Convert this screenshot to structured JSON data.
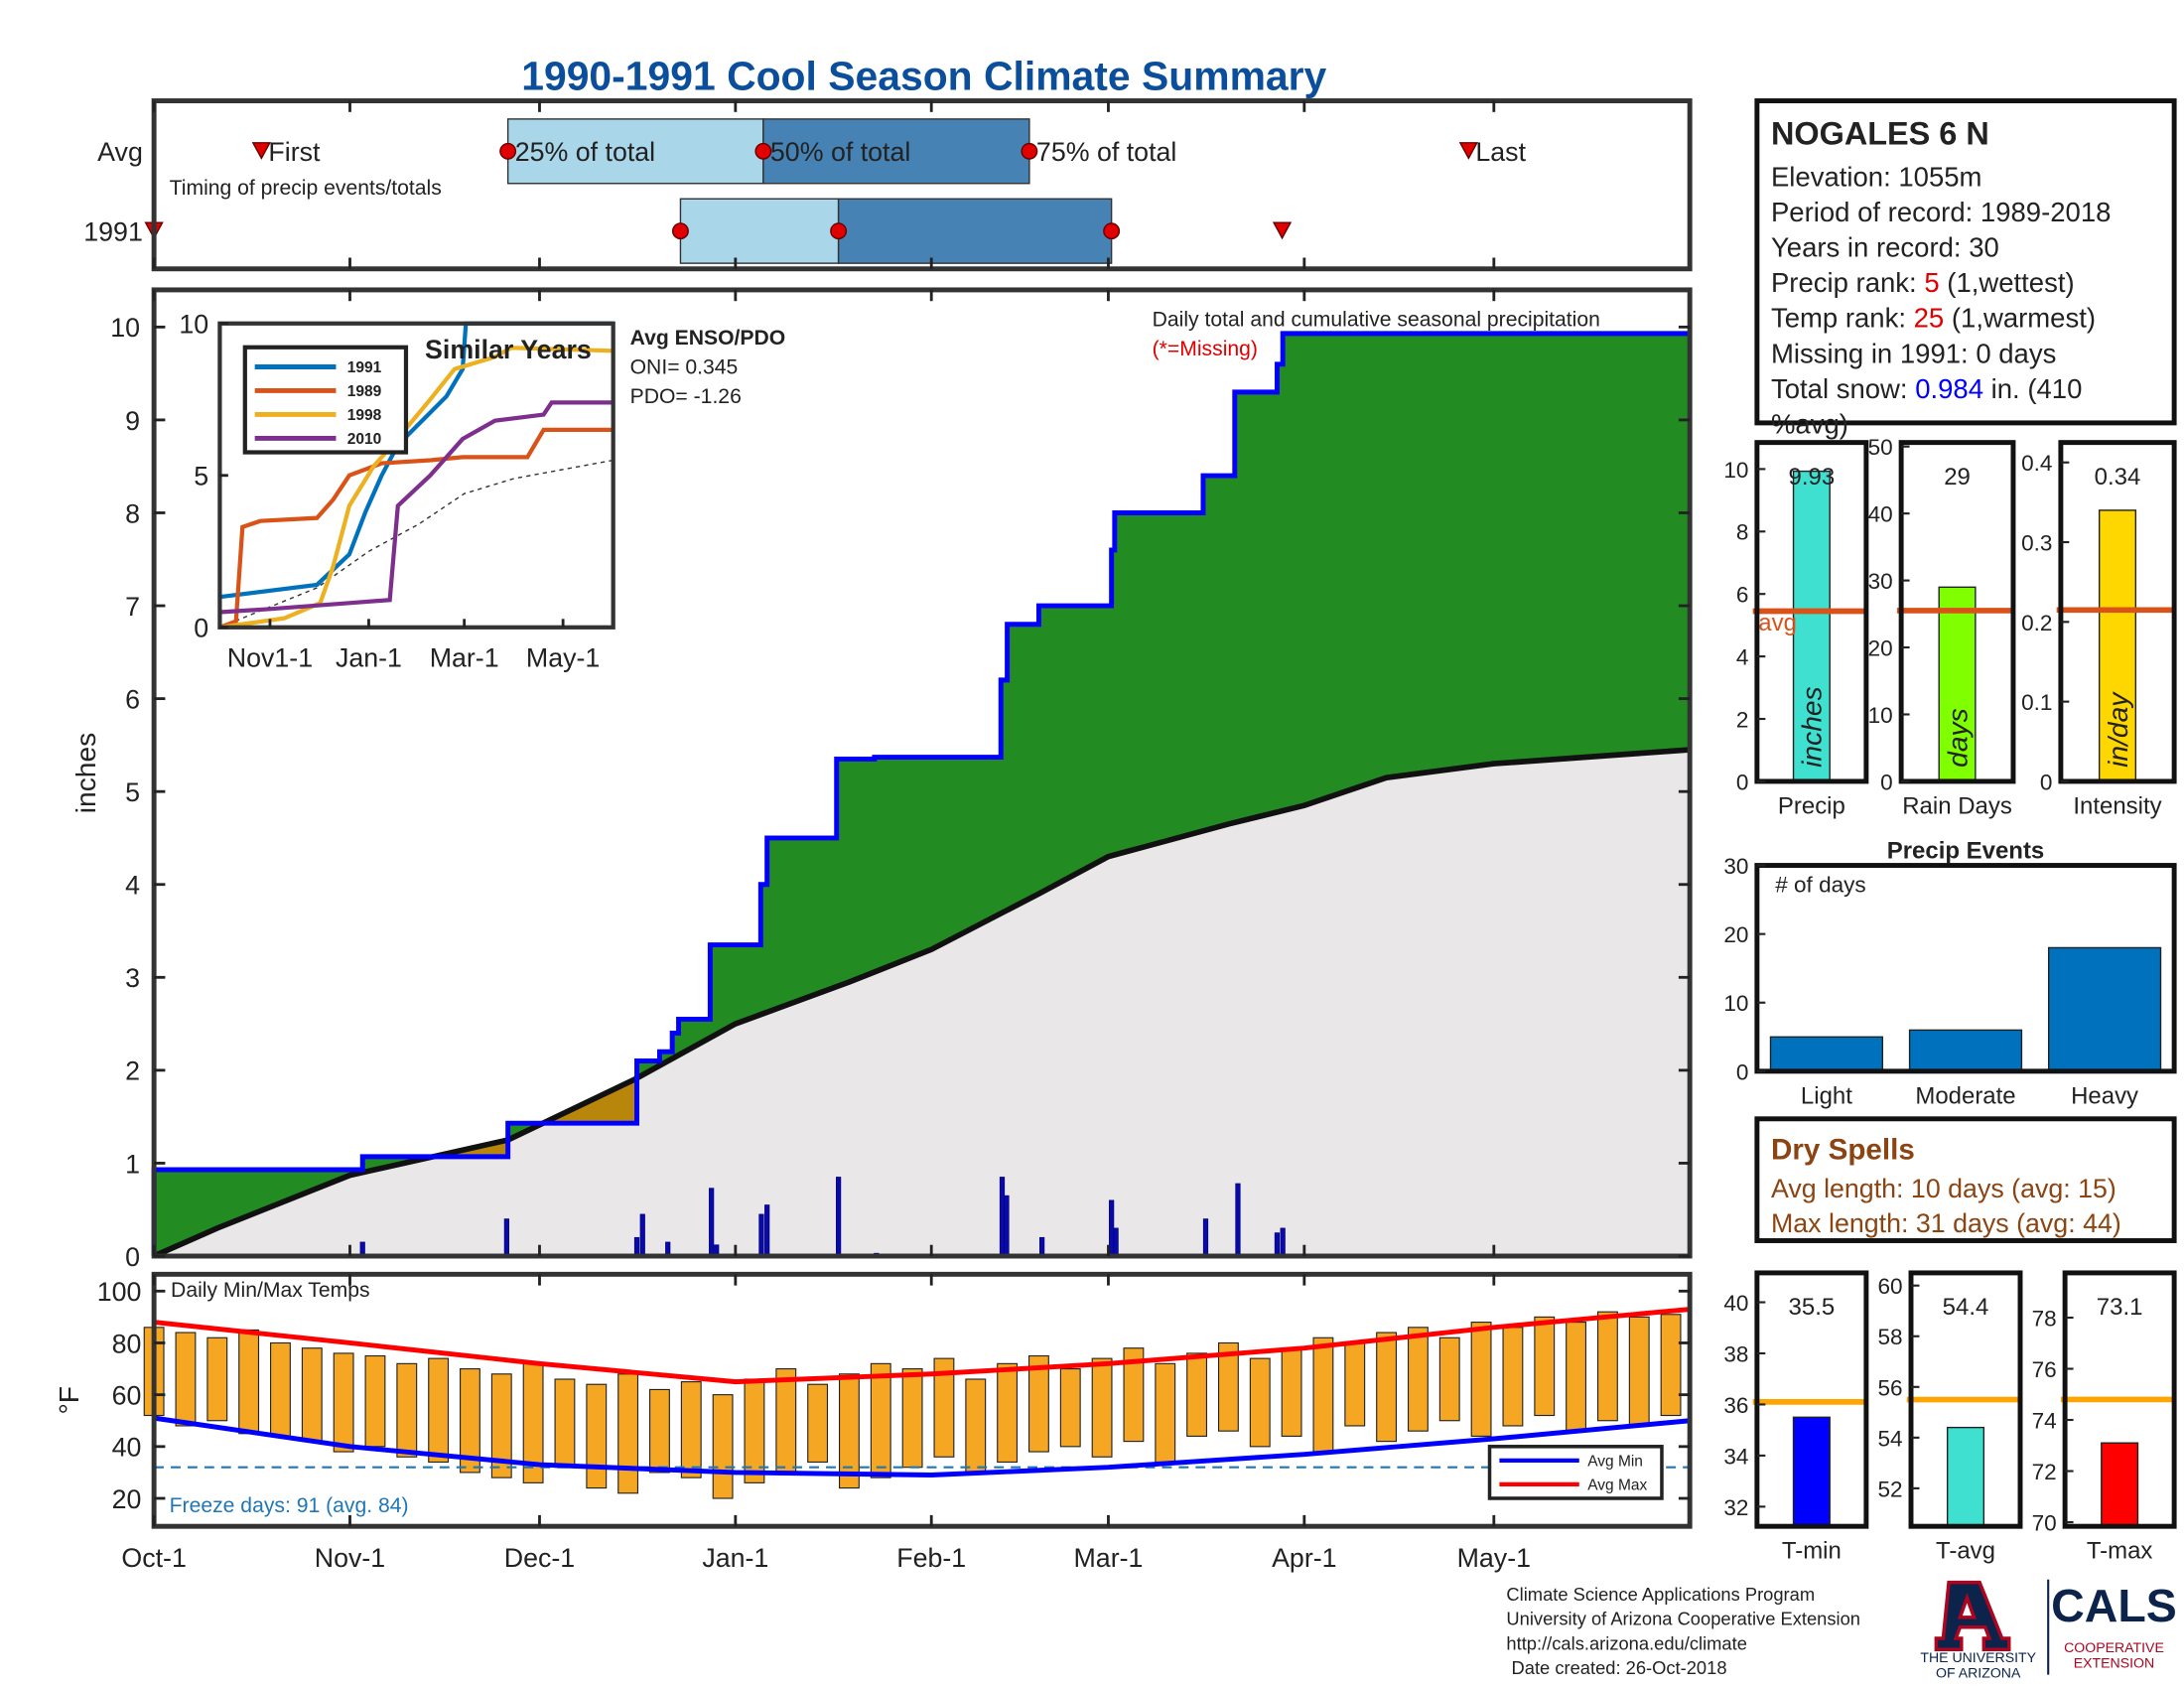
{
  "title": "1990-1991 Cool Season Climate Summary",
  "x_axis": {
    "xlim": [
      0,
      243
    ],
    "xticks": [
      {
        "value": 0,
        "label": "Oct-1"
      },
      {
        "value": 31,
        "label": "Nov-1"
      },
      {
        "value": 61,
        "label": "Dec-1"
      },
      {
        "value": 92,
        "label": "Jan-1"
      },
      {
        "value": 123,
        "label": "Feb-1"
      },
      {
        "value": 151,
        "label": "Mar-1"
      },
      {
        "value": 182,
        "label": "Apr-1"
      },
      {
        "value": 212,
        "label": "May-1"
      }
    ]
  },
  "chart_data": [
    {
      "type": "timing",
      "note": "Timing of precip events/totals",
      "labels": {
        "first": "First",
        "p25": "25% of total",
        "p50": "50% of total",
        "p75": "75% of total",
        "last": "Last"
      },
      "colors": {
        "lower": "#a9d6e8",
        "upper": "#4682b4",
        "marker": "#e00000"
      },
      "rows": [
        {
          "name": "Avg",
          "first": 17,
          "p25": 56,
          "p50": 96.4,
          "p75": 138.5,
          "last": 208
        },
        {
          "name": "1991",
          "first": 0,
          "p25": 83.3,
          "p50": 108.3,
          "p75": 151.5,
          "last": 178.5
        }
      ]
    },
    {
      "type": "precip",
      "ylabel": "inches",
      "note": "Daily total and cumulative seasonal precipitation",
      "missing": "(*=Missing)",
      "ylim": [
        0,
        10.4
      ],
      "yticks": [
        0,
        1,
        2,
        3,
        4,
        5,
        6,
        7,
        8,
        9,
        10
      ],
      "colors": {
        "cumulative": "#0000ff",
        "average": "#111111",
        "above": "#228b22",
        "below": "#b8860b",
        "base": "#e9e7e7",
        "daily": "#0a0aa8"
      },
      "cumulative": {
        "x": [
          0,
          33,
          56,
          76.4,
          80,
          82,
          83,
          88,
          96,
          97,
          108,
          114,
          134,
          135,
          140,
          151.5,
          152,
          166,
          171,
          177.7,
          178.6
        ],
        "values": [
          0.93,
          1.07,
          1.43,
          2.1,
          2.2,
          2.4,
          2.55,
          3.35,
          4.0,
          4.5,
          5.35,
          5.37,
          6.2,
          6.8,
          7.0,
          7.6,
          8.0,
          8.4,
          9.3,
          9.6,
          9.93
        ]
      },
      "average": {
        "x": [
          0,
          10,
          31,
          56,
          76,
          92,
          110,
          123,
          140,
          151,
          170,
          182,
          195,
          212,
          243
        ],
        "values": [
          0,
          0.3,
          0.87,
          1.25,
          1.9,
          2.5,
          2.95,
          3.3,
          3.9,
          4.3,
          4.65,
          4.85,
          5.15,
          5.3,
          5.45
        ]
      },
      "daily": {
        "x": [
          33,
          55.8,
          76.4,
          77.3,
          81.3,
          88.2,
          89,
          96.1,
          97,
          108.3,
          114.3,
          134.2,
          134.9,
          140.5,
          151.5,
          152.2,
          166.4,
          171.5,
          177.7,
          178.6
        ],
        "values": [
          0.15,
          0.4,
          0.2,
          0.45,
          0.15,
          0.73,
          0.12,
          0.45,
          0.55,
          0.85,
          0.03,
          0.85,
          0.65,
          0.2,
          0.6,
          0.3,
          0.4,
          0.78,
          0.25,
          0.3
        ]
      }
    },
    {
      "type": "line",
      "title": "Similar Years",
      "annotation_title": "Avg ENSO/PDO",
      "annotation_lines": [
        "ONI= 0.345",
        "PDO= -1.26"
      ],
      "xlim": [
        0,
        243
      ],
      "xticks": [
        {
          "value": 31,
          "label": "Nov1-1"
        },
        {
          "value": 92,
          "label": "Jan-1"
        },
        {
          "value": 151,
          "label": "Mar-1"
        },
        {
          "value": 212,
          "label": "May-1"
        }
      ],
      "ylim": [
        0,
        10
      ],
      "yticks": [
        0,
        5,
        10
      ],
      "series": [
        {
          "name": "1991",
          "color": "#0072bd",
          "x": [
            0,
            60,
            80,
            90,
            100,
            110,
            140,
            150,
            152,
            243
          ],
          "values": [
            1.0,
            1.4,
            2.4,
            3.8,
            5.0,
            6.0,
            7.6,
            8.5,
            10.0,
            10.0
          ]
        },
        {
          "name": "1989",
          "color": "#d95319",
          "x": [
            0,
            10,
            14,
            25,
            60,
            70,
            80,
            100,
            130,
            150,
            190,
            200,
            243
          ],
          "values": [
            0,
            0.2,
            3.3,
            3.5,
            3.6,
            4.2,
            5.0,
            5.4,
            5.5,
            5.6,
            5.6,
            6.5,
            6.5
          ]
        },
        {
          "name": "1998",
          "color": "#edb120",
          "x": [
            0,
            40,
            62,
            70,
            80,
            95,
            105,
            130,
            145,
            170,
            180,
            243
          ],
          "values": [
            0,
            0.3,
            0.8,
            2.0,
            4.0,
            5.3,
            5.9,
            7.5,
            8.5,
            8.9,
            9.2,
            9.1
          ]
        },
        {
          "name": "2010",
          "color": "#7e2f8e",
          "x": [
            0,
            30,
            80,
            105,
            110,
            130,
            150,
            170,
            200,
            205,
            243
          ],
          "values": [
            0.5,
            0.6,
            0.8,
            0.9,
            4.0,
            5.0,
            6.2,
            6.8,
            7.0,
            7.4,
            7.4
          ]
        }
      ],
      "average": {
        "color": "#333333",
        "x": [
          0,
          60,
          92,
          123,
          151,
          182,
          243
        ],
        "values": [
          0,
          1.3,
          2.5,
          3.4,
          4.4,
          4.9,
          5.5
        ]
      }
    },
    {
      "type": "minmax",
      "title": "Daily Min/Max Temps",
      "ylabel": "°F",
      "freeze_text": "Freeze days: 91 (avg. 84)",
      "freeze_line": 32,
      "freeze_color": "#1f77b4",
      "ylim": [
        9.2,
        106.5
      ],
      "yticks": [
        20,
        40,
        60,
        80,
        100
      ],
      "color": "#f5a623",
      "x": [
        0,
        5,
        10,
        15,
        20,
        25,
        30,
        35,
        40,
        45,
        50,
        55,
        60,
        65,
        70,
        75,
        80,
        85,
        90,
        95,
        100,
        105,
        110,
        115,
        120,
        125,
        130,
        135,
        140,
        145,
        150,
        155,
        160,
        165,
        170,
        175,
        180,
        185,
        190,
        195,
        200,
        205,
        210,
        215,
        220,
        225,
        230,
        235,
        240
      ],
      "max": [
        86,
        84,
        82,
        85,
        80,
        78,
        76,
        75,
        72,
        74,
        70,
        68,
        72,
        66,
        64,
        68,
        62,
        65,
        60,
        66,
        70,
        64,
        68,
        72,
        70,
        74,
        66,
        72,
        75,
        70,
        74,
        78,
        72,
        76,
        80,
        74,
        78,
        82,
        80,
        84,
        86,
        82,
        88,
        86,
        90,
        88,
        92,
        90,
        91
      ],
      "min": [
        52,
        48,
        50,
        45,
        44,
        42,
        38,
        40,
        36,
        34,
        30,
        28,
        26,
        32,
        24,
        22,
        30,
        28,
        20,
        26,
        30,
        34,
        24,
        28,
        32,
        36,
        30,
        34,
        38,
        40,
        36,
        42,
        34,
        44,
        46,
        40,
        44,
        38,
        48,
        42,
        46,
        50,
        44,
        48,
        52,
        46,
        50,
        48,
        52
      ],
      "series": [
        {
          "name": "Avg Min",
          "color": "#0000ff",
          "x": [
            0,
            31,
            61,
            92,
            123,
            151,
            182,
            212,
            243
          ],
          "values": [
            51,
            40,
            33,
            30,
            29,
            32,
            37,
            43,
            50
          ]
        },
        {
          "name": "Avg Max",
          "color": "#ff0000",
          "x": [
            0,
            31,
            61,
            92,
            123,
            151,
            182,
            212,
            243
          ],
          "values": [
            88,
            80,
            72,
            65,
            68,
            72,
            78,
            86,
            93
          ]
        }
      ]
    },
    {
      "type": "bar",
      "categories": [
        "Precip"
      ],
      "values": [
        9.93
      ],
      "unit": "inches",
      "average": 5.45,
      "avg_label": "avg",
      "avg_color": "#d95319",
      "color": "#40e0d0",
      "ylim": [
        0,
        10.85
      ],
      "yticks": [
        0,
        2,
        4,
        6,
        8,
        10
      ]
    },
    {
      "type": "bar",
      "categories": [
        "Rain Days"
      ],
      "values": [
        29
      ],
      "unit": "days",
      "average": 25.5,
      "avg_color": "#d95319",
      "color": "#7fff00",
      "ylim": [
        0,
        50.6
      ],
      "yticks": [
        0,
        10,
        20,
        30,
        40,
        50
      ]
    },
    {
      "type": "bar",
      "categories": [
        "Intensity"
      ],
      "values": [
        0.34
      ],
      "unit": "in/day",
      "average": 0.215,
      "avg_color": "#d95319",
      "color": "#ffd700",
      "ylim": [
        0,
        0.425
      ],
      "yticks": [
        0,
        0.1,
        0.2,
        0.3,
        0.4
      ]
    },
    {
      "type": "bar",
      "title": "Precip Events",
      "ylabel": "# of days",
      "categories": [
        "Light",
        "Moderate",
        "Heavy"
      ],
      "values": [
        5,
        6,
        18
      ],
      "color": "#0072bd",
      "ylim": [
        0,
        30
      ],
      "yticks": [
        0,
        10,
        20,
        30
      ]
    },
    {
      "type": "bar",
      "categories": [
        "T-min"
      ],
      "values": [
        35.5
      ],
      "average": 36.1,
      "avg_color": "#ffa500",
      "color": "#0000ff",
      "ylim": [
        31.23,
        41.15
      ],
      "yticks": [
        32,
        34,
        36,
        38,
        40
      ]
    },
    {
      "type": "bar",
      "categories": [
        "T-avg"
      ],
      "values": [
        54.4
      ],
      "average": 55.5,
      "avg_color": "#ffa500",
      "color": "#40e0d0",
      "ylim": [
        50.5,
        60.5
      ],
      "yticks": [
        52,
        54,
        56,
        58,
        60
      ]
    },
    {
      "type": "bar",
      "categories": [
        "T-max"
      ],
      "values": [
        73.1
      ],
      "average": 74.8,
      "avg_color": "#ffa500",
      "color": "#ff0000",
      "ylim": [
        69.84,
        79.75
      ],
      "yticks": [
        70,
        72,
        74,
        76,
        78
      ]
    }
  ],
  "station": {
    "name": "NOGALES 6 N",
    "lines": [
      [
        {
          "text": "Elevation: 1055m"
        }
      ],
      [
        {
          "text": "Period of record: 1989-2018"
        }
      ],
      [
        {
          "text": "Years in record: 30"
        }
      ],
      [
        {
          "text": "Precip rank: "
        },
        {
          "text": "5",
          "color": "#e00000"
        },
        {
          "text": " (1,wettest)"
        }
      ],
      [
        {
          "text": "Temp rank: "
        },
        {
          "text": "25",
          "color": "#e00000"
        },
        {
          "text": " (1,warmest)"
        }
      ],
      [
        {
          "text": "Missing in 1991: 0 days"
        }
      ],
      [
        {
          "text": "Total snow: "
        },
        {
          "text": "0.984",
          "color": "#0000ff"
        },
        {
          "text": " in. (410"
        }
      ],
      [
        {
          "text": "%avg)"
        }
      ]
    ]
  },
  "dry_spells": {
    "title": "Dry Spells",
    "color": "#8b4513",
    "lines": [
      "Avg length: 10 days (avg: 15)",
      "Max length: 31 days (avg: 44)"
    ]
  },
  "footer": {
    "lines": [
      "Climate Science Applications Program",
      "University of Arizona Cooperative Extension",
      "http://cals.arizona.edu/climate",
      " Date created: 26-Oct-2018"
    ],
    "university": [
      "THE UNIVERSITY",
      "OF ARIZONA"
    ],
    "cals": "CALS",
    "extension": [
      "COOPERATIVE",
      "EXTENSION"
    ]
  }
}
